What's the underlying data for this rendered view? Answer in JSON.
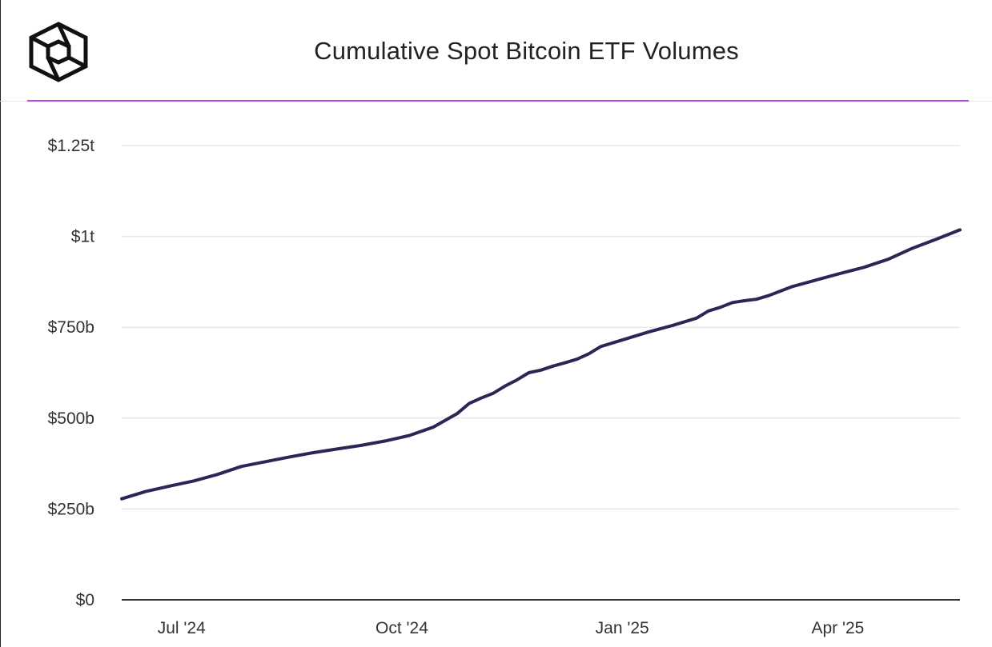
{
  "header": {
    "logo_icon": "cube-logo-icon",
    "title": "Cumulative Spot Bitcoin ETF Volumes",
    "accent_color": "#b14bf0"
  },
  "chart_data": {
    "type": "line",
    "title": "Cumulative Spot Bitcoin ETF Volumes",
    "xlabel": "",
    "ylabel": "",
    "ylim": [
      0,
      1250
    ],
    "y_unit": "USD billions",
    "y_ticks": [
      {
        "value": 0,
        "label": "$0"
      },
      {
        "value": 250,
        "label": "$250b"
      },
      {
        "value": 500,
        "label": "$500b"
      },
      {
        "value": 750,
        "label": "$750b"
      },
      {
        "value": 1000,
        "label": "$1t"
      },
      {
        "value": 1250,
        "label": "$1.25t"
      }
    ],
    "x_range_days": [
      0,
      350
    ],
    "x_ticks": [
      {
        "day": 25,
        "label": "Jul '24"
      },
      {
        "day": 117,
        "label": "Oct '24"
      },
      {
        "day": 209,
        "label": "Jan '25"
      },
      {
        "day": 299,
        "label": "Apr '25"
      }
    ],
    "grid": true,
    "line_color": "#2e2557",
    "series": [
      {
        "name": "Cumulative Spot Bitcoin ETF Volumes",
        "x": [
          0,
          10,
          20,
          30,
          40,
          50,
          60,
          70,
          80,
          90,
          100,
          110,
          120,
          130,
          140,
          145,
          150,
          155,
          160,
          165,
          170,
          175,
          180,
          185,
          190,
          195,
          200,
          210,
          220,
          230,
          240,
          245,
          250,
          255,
          260,
          265,
          270,
          280,
          290,
          300,
          310,
          320,
          330,
          340,
          350
        ],
        "values": [
          278,
          298,
          313,
          327,
          345,
          367,
          380,
          393,
          405,
          415,
          425,
          437,
          452,
          475,
          512,
          540,
          555,
          568,
          588,
          605,
          625,
          632,
          643,
          652,
          662,
          677,
          697,
          717,
          737,
          755,
          775,
          795,
          805,
          818,
          823,
          827,
          837,
          862,
          880,
          898,
          915,
          937,
          967,
          992,
          1018
        ]
      }
    ]
  }
}
